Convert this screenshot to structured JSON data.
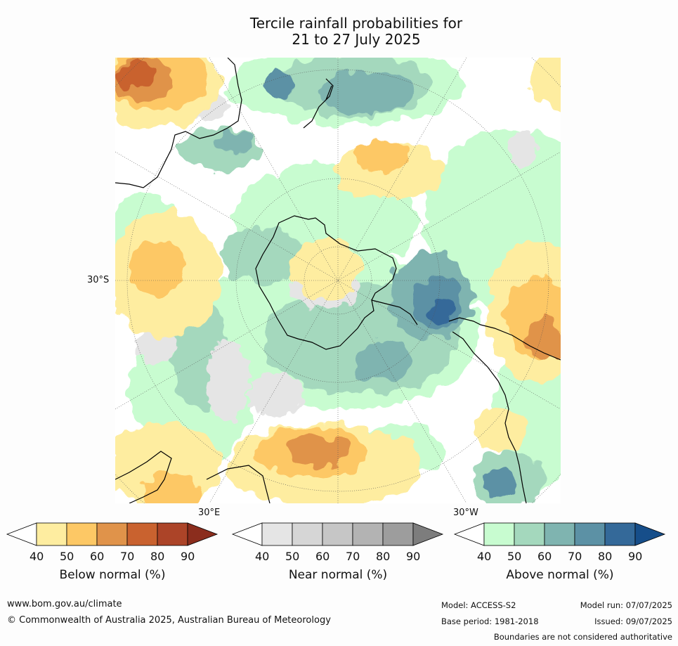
{
  "title_line1": "Tercile rainfall probabilities for",
  "title_line2": "21 to 27 July 2025",
  "map": {
    "lat_label": "30°S",
    "lon_label_east": "30°E",
    "lon_label_west": "30°W"
  },
  "colorbars": [
    {
      "id": "below",
      "title": "Below normal (%)",
      "ticks": [
        "40",
        "50",
        "60",
        "70",
        "80",
        "90"
      ],
      "colors": [
        "#ffffff",
        "#feeda0",
        "#fdc865",
        "#e0934a",
        "#c9622f",
        "#ac4428",
        "#8b2d1d"
      ]
    },
    {
      "id": "near",
      "title": "Near normal (%)",
      "ticks": [
        "40",
        "50",
        "60",
        "70",
        "80",
        "90"
      ],
      "colors": [
        "#ffffff",
        "#e5e5e5",
        "#d6d6d6",
        "#c6c6c6",
        "#b3b3b3",
        "#9d9d9d",
        "#7d7d7d"
      ]
    },
    {
      "id": "above",
      "title": "Above normal (%)",
      "ticks": [
        "40",
        "50",
        "60",
        "70",
        "80",
        "90"
      ],
      "colors": [
        "#ffffff",
        "#c8fcd0",
        "#a4d8bd",
        "#7fb4b0",
        "#5c91a5",
        "#346999",
        "#164e8a"
      ]
    }
  ],
  "footer": {
    "website": "www.bom.gov.au/climate",
    "copyright": "© Commonwealth of Australia 2025, Australian Bureau of Meteorology",
    "model": "Model: ACCESS-S2",
    "base_period": "Base period: 1981-2018",
    "model_run": "Model run: 07/07/2025",
    "issued": "Issued: 09/07/2025",
    "disclaimer": "Boundaries are not considered authoritative"
  }
}
